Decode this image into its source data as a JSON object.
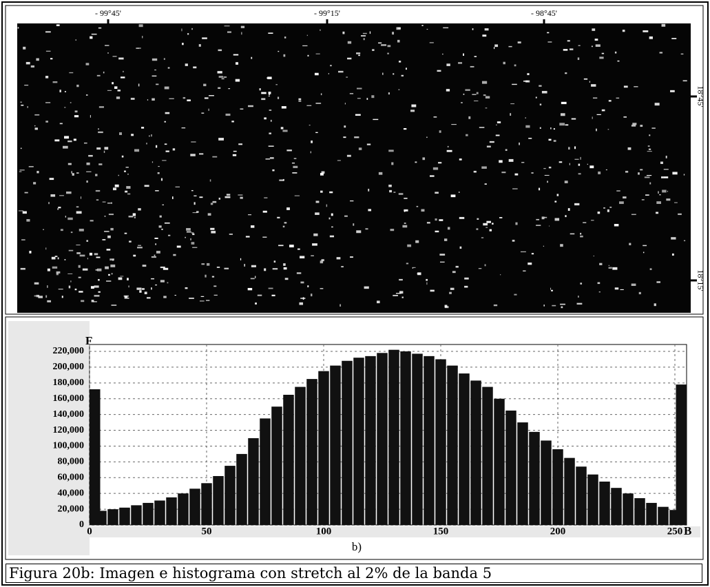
{
  "image": {
    "lon_labels": [
      "- 99°45'",
      "- 99°15'",
      "- 98°45'"
    ],
    "lat_labels": [
      "18°45'",
      "18°15'"
    ]
  },
  "chart_data": {
    "type": "bar",
    "ylabel": "F",
    "xlabel": "B",
    "caption": "b)",
    "x": [
      0,
      5,
      10,
      15,
      20,
      25,
      30,
      35,
      40,
      45,
      50,
      55,
      60,
      65,
      70,
      75,
      80,
      85,
      90,
      95,
      100,
      105,
      110,
      115,
      120,
      125,
      130,
      135,
      140,
      145,
      150,
      155,
      160,
      165,
      170,
      175,
      180,
      185,
      190,
      195,
      200,
      205,
      210,
      215,
      220,
      225,
      230,
      235,
      240,
      245,
      250,
      255
    ],
    "values": [
      172000,
      18000,
      20000,
      22000,
      25000,
      28000,
      31000,
      35000,
      40000,
      46000,
      53000,
      62000,
      75000,
      90000,
      110000,
      135000,
      150000,
      165000,
      175000,
      185000,
      195000,
      202000,
      208000,
      212000,
      214000,
      218000,
      222000,
      220000,
      217000,
      214000,
      210000,
      202000,
      192000,
      183000,
      175000,
      160000,
      145000,
      130000,
      118000,
      107000,
      96000,
      85000,
      74000,
      64000,
      55000,
      47000,
      40000,
      34000,
      28000,
      23000,
      19000,
      178000
    ],
    "color": "#111111",
    "xlim": [
      0,
      255
    ],
    "xticks": [
      0,
      50,
      100,
      150,
      200,
      250
    ],
    "ylim": [
      0,
      220000
    ],
    "yticks": [
      0,
      {
        "value": 20000,
        "label": "20,000"
      },
      {
        "value": 40000,
        "label": "40,000"
      },
      {
        "value": 60000,
        "label": "60,000"
      },
      {
        "value": 80000,
        "label": "80,000"
      },
      {
        "value": 100000,
        "label": "100,000"
      },
      {
        "value": 120000,
        "label": "120,000"
      },
      {
        "value": 140000,
        "label": "140,000"
      },
      {
        "value": 160000,
        "label": "160,000"
      },
      {
        "value": 180000,
        "label": "180,000"
      },
      {
        "value": 200000,
        "label": "200,000"
      },
      {
        "value": 220000,
        "label": "220,000"
      }
    ],
    "grid": true
  },
  "caption": "Figura 20b: Imagen e histograma con stretch al 2% de la banda 5"
}
